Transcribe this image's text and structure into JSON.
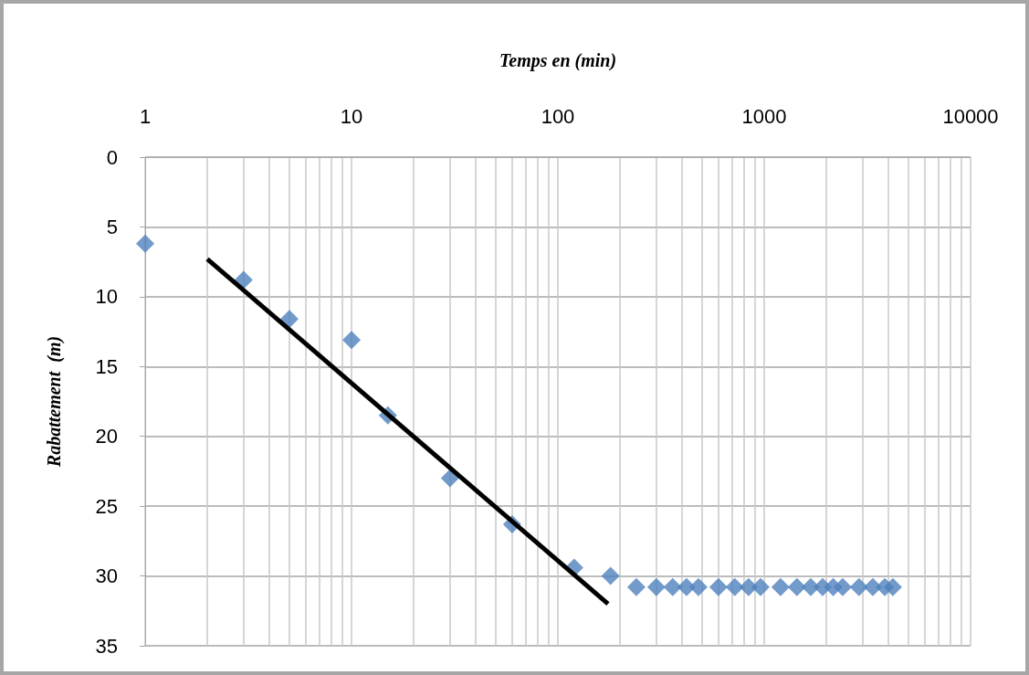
{
  "chart_data": {
    "type": "scatter",
    "xlabel": "Temps en (min)",
    "ylabel": "Rabattement  (m)",
    "log": "x",
    "xlim": [
      1,
      10000
    ],
    "xticks": [
      1,
      10,
      100,
      1000,
      10000
    ],
    "ylim": [
      35,
      0
    ],
    "yticks": [
      0,
      5,
      10,
      15,
      20,
      25,
      30,
      35
    ],
    "grid": true,
    "marker": "diamond",
    "series": [
      {
        "color": "#4f81bd",
        "x": [
          1,
          3,
          5,
          10,
          15,
          30,
          60,
          120,
          180,
          240,
          300,
          360,
          420,
          480,
          600,
          720,
          840,
          960,
          1200,
          1440,
          1680,
          1920,
          2160,
          2400,
          2880,
          3360,
          3840,
          4200
        ],
        "values": [
          6.2,
          8.8,
          11.6,
          13.1,
          18.5,
          23,
          26.3,
          29.4,
          30,
          30.8,
          30.8,
          30.8,
          30.8,
          30.8,
          30.8,
          30.8,
          30.8,
          30.8,
          30.8,
          30.8,
          30.8,
          30.8,
          30.8,
          30.8,
          30.8,
          30.8,
          30.8,
          30.8
        ]
      },
      {
        "type": "line",
        "marker": "none",
        "color": "#000000",
        "x": [
          2,
          175
        ],
        "values": [
          7.3,
          32
        ]
      }
    ]
  }
}
